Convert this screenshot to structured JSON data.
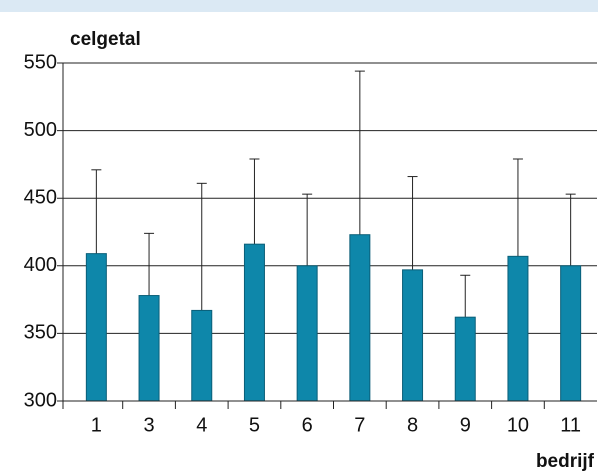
{
  "chart_data": {
    "type": "bar",
    "y_label": "celgetal",
    "x_label": "bedrijf",
    "categories": [
      "1",
      "3",
      "4",
      "5",
      "6",
      "7",
      "8",
      "9",
      "10",
      "11"
    ],
    "values": [
      409,
      378,
      367,
      416,
      400,
      423,
      397,
      362,
      407,
      400
    ],
    "errors": [
      62,
      46,
      94,
      63,
      53,
      121,
      69,
      31,
      72,
      53
    ],
    "color": "#0e87aa",
    "ylim": [
      300,
      550
    ],
    "yticks": [
      300,
      350,
      400,
      450,
      500,
      550
    ],
    "grid": true
  }
}
